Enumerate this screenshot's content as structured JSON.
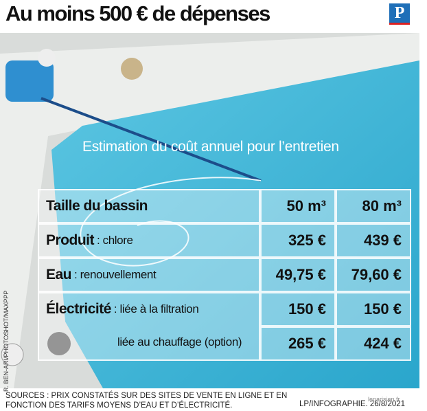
{
  "header": {
    "title": "Au moins 500 € de dépenses",
    "logo": "P"
  },
  "subtitle": "Estimation du coût annuel pour l’entretien",
  "table": {
    "header": {
      "label": "Taille du bassin",
      "columns": [
        "50 m³",
        "80 m³"
      ]
    },
    "rows": [
      {
        "label": "Produit",
        "note": ": chlore",
        "values": [
          "325 €",
          "439 €"
        ]
      },
      {
        "label": "Eau",
        "note": ": renouvellement",
        "values": [
          "49,75 €",
          "79,60 €"
        ]
      },
      {
        "label": "Électricité",
        "note": ": liée à la filtration",
        "values": [
          "150 €",
          "150 €"
        ]
      },
      {
        "note": "liée au chauffage (option)",
        "values": [
          "265 €",
          "424 €"
        ]
      }
    ]
  },
  "photo_credit": "R. BEN-ARI/PHOTOSHOT/MAXPPP",
  "footer": {
    "sources": "SOURCES : PRIX CONSTATÉS SUR DES SITES DE VENTE EN LIGNE ET EN FONCTION DES TARIFS MOYENS D’EAU ET D’ÉLECTRICITÉ.",
    "credit": "LP/INFOGRAPHIE. 26/8/2021",
    "watermark": "leparisien.fr"
  }
}
